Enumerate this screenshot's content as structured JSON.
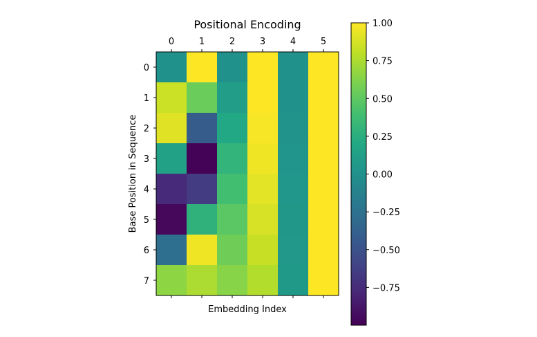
{
  "chart_data": {
    "type": "heatmap",
    "title": "Positional Encoding",
    "xlabel": "Embedding Index",
    "ylabel": "Base Position in Sequence",
    "x_ticks": [
      "0",
      "1",
      "2",
      "3",
      "4",
      "5"
    ],
    "y_ticks": [
      "0",
      "1",
      "2",
      "3",
      "4",
      "5",
      "6",
      "7"
    ],
    "values": [
      [
        0.0,
        1.0,
        0.0,
        1.0,
        0.0,
        1.0
      ],
      [
        0.84,
        0.54,
        0.1,
        1.0,
        0.0,
        1.0
      ],
      [
        0.91,
        -0.42,
        0.2,
        0.98,
        0.02,
        1.0
      ],
      [
        0.14,
        -0.99,
        0.3,
        0.96,
        0.03,
        1.0
      ],
      [
        -0.76,
        -0.65,
        0.39,
        0.92,
        0.04,
        1.0
      ],
      [
        -0.96,
        0.28,
        0.48,
        0.88,
        0.05,
        1.0
      ],
      [
        -0.28,
        0.96,
        0.56,
        0.83,
        0.06,
        1.0
      ],
      [
        0.66,
        0.75,
        0.64,
        0.77,
        0.07,
        1.0
      ]
    ],
    "colormap": "viridis",
    "colorbar": {
      "range": [
        -1.0,
        1.0
      ],
      "ticks": [
        "1.00",
        "0.75",
        "0.50",
        "0.25",
        "0.00",
        "−0.25",
        "−0.50",
        "−0.75"
      ],
      "tick_values": [
        1.0,
        0.75,
        0.5,
        0.25,
        0.0,
        -0.25,
        -0.5,
        -0.75
      ]
    },
    "grid": false,
    "x_ticks_position": "top"
  }
}
